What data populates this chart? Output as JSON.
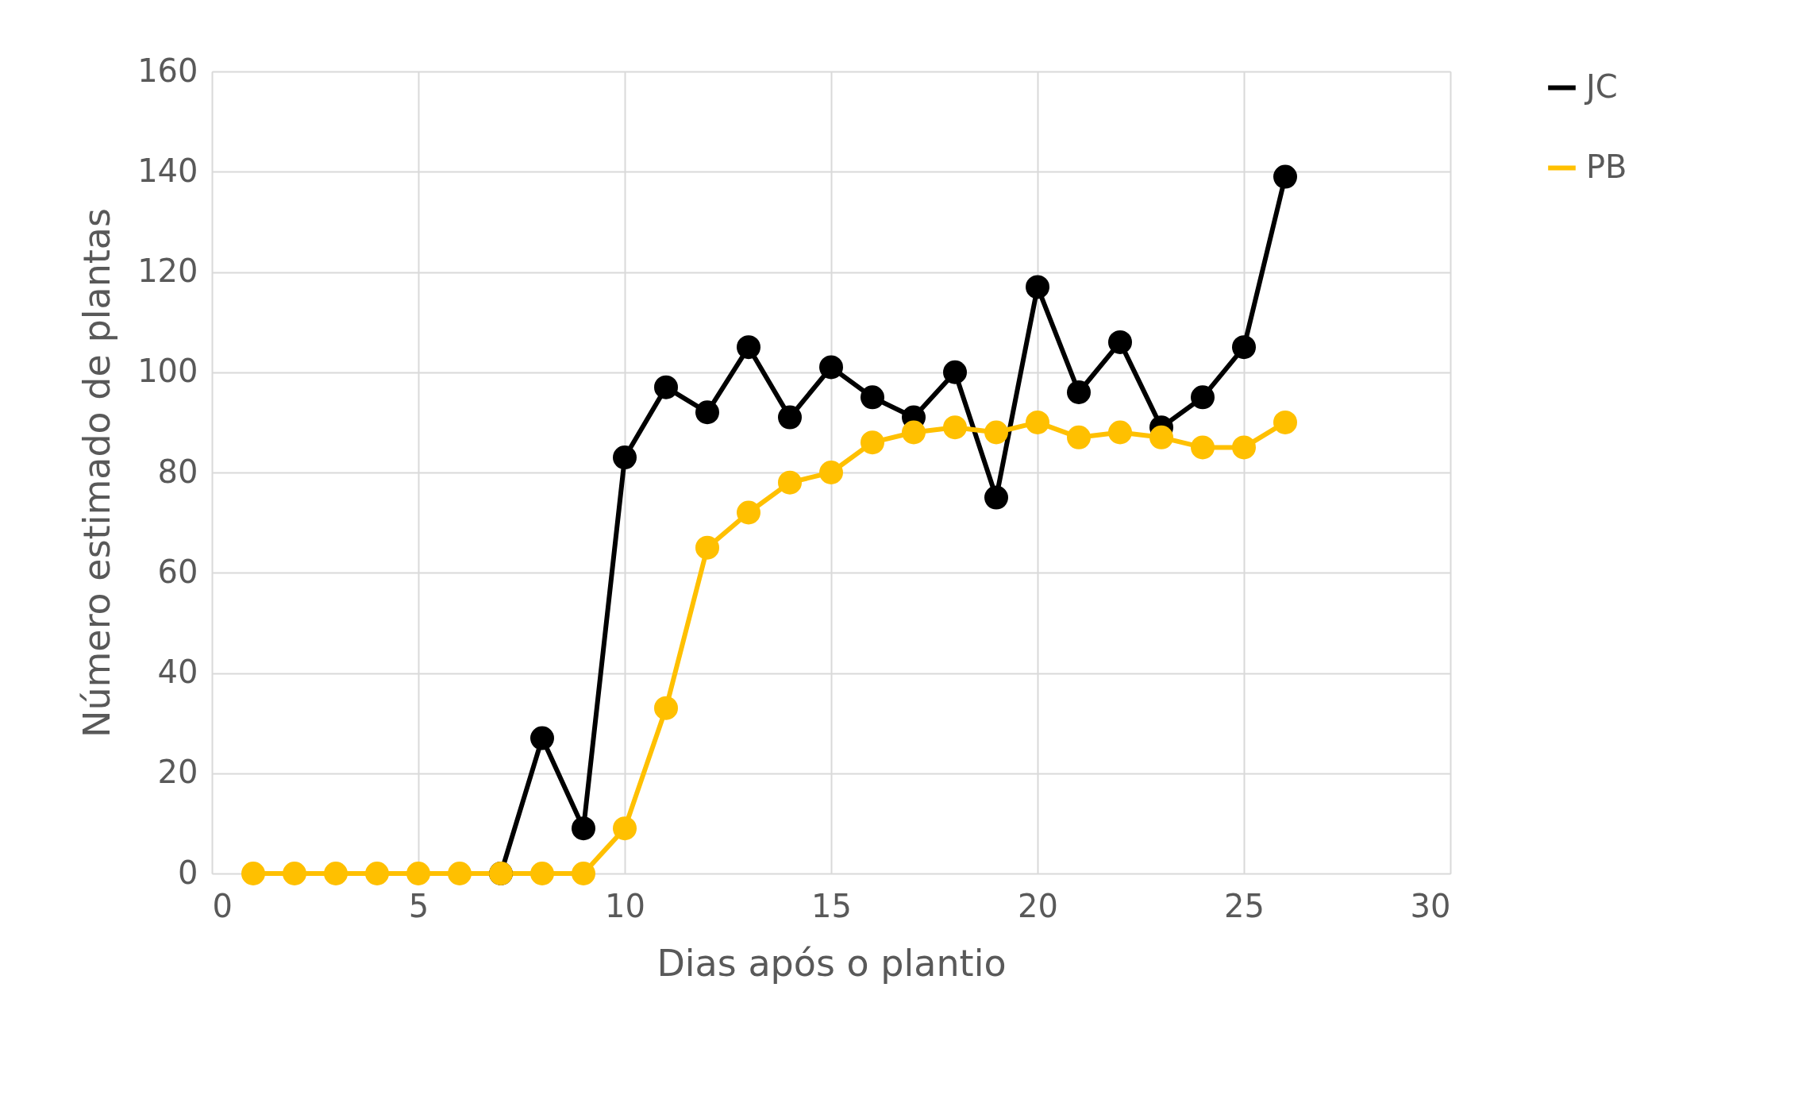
{
  "chart_data": {
    "type": "line",
    "xlabel": "Dias após o plantio",
    "ylabel": "Número estimado de plantas",
    "x": [
      1,
      2,
      3,
      4,
      5,
      6,
      7,
      8,
      9,
      10,
      11,
      12,
      13,
      14,
      15,
      16,
      17,
      18,
      19,
      20,
      21,
      22,
      23,
      24,
      25,
      26
    ],
    "series": [
      {
        "name": "JC",
        "color": "#000000",
        "values": [
          null,
          null,
          null,
          null,
          null,
          null,
          0,
          27,
          9,
          83,
          97,
          92,
          105,
          91,
          101,
          95,
          91,
          100,
          75,
          117,
          96,
          106,
          89,
          95,
          105,
          139
        ]
      },
      {
        "name": "PB",
        "color": "#ffc000",
        "values": [
          0,
          0,
          0,
          0,
          0,
          0,
          0,
          0,
          0,
          9,
          33,
          65,
          72,
          78,
          80,
          86,
          88,
          89,
          88,
          90,
          87,
          88,
          87,
          85,
          85,
          90
        ]
      }
    ],
    "xlim": [
      0,
      30
    ],
    "xticks": [
      0,
      5,
      10,
      15,
      20,
      25,
      30
    ],
    "ylim": [
      0,
      160
    ],
    "yticks": [
      0,
      20,
      40,
      60,
      80,
      100,
      120,
      140,
      160
    ],
    "grid": true,
    "legend": "right",
    "marker": "circle",
    "line_style": "solid"
  }
}
